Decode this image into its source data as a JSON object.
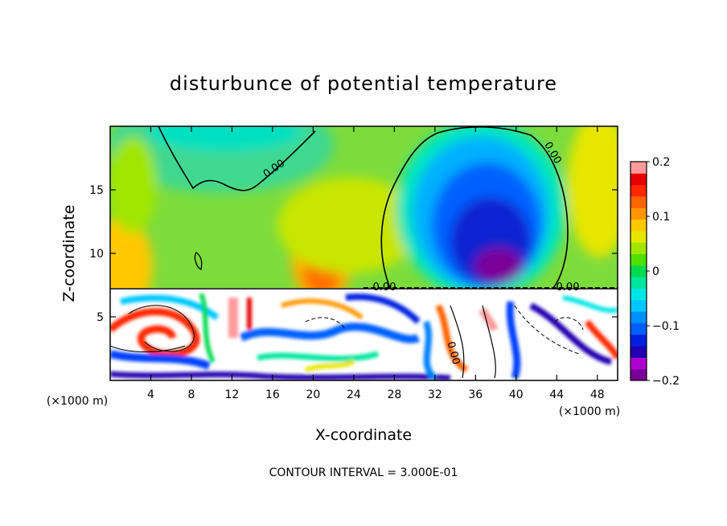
{
  "chart_data": {
    "type": "heatmap",
    "title": "disturbunce of potential temperature",
    "xlabel": "X-coordinate",
    "ylabel": "Z-coordinate",
    "x_unit": "(×1000 m)",
    "x_ticks": [
      4,
      8,
      12,
      16,
      20,
      24,
      28,
      32,
      36,
      40,
      44,
      48
    ],
    "y_ticks": [
      5,
      10,
      15
    ],
    "xlim": [
      0,
      50
    ],
    "ylim": [
      0,
      20
    ],
    "colorbar": {
      "ticks": [
        "0.2",
        "0.1",
        "0",
        "−0.1",
        "−0.2"
      ],
      "vmin": -0.2,
      "vmax": 0.2,
      "colors": [
        "#7a0099",
        "#b000d0",
        "#2000b0",
        "#0020e0",
        "#0060ff",
        "#0090ff",
        "#00c8ff",
        "#00e6e6",
        "#00e69e",
        "#00dc50",
        "#50e000",
        "#a0e600",
        "#e6e600",
        "#ffc800",
        "#ff9600",
        "#ff6400",
        "#ff2800",
        "#e60000",
        "#ff9a9a"
      ]
    },
    "contour_labels": [
      "0.00",
      "0.00",
      "0.00",
      "0.00",
      "0.00"
    ],
    "note": "CONTOUR INTERVAL = 3.000E-01"
  }
}
